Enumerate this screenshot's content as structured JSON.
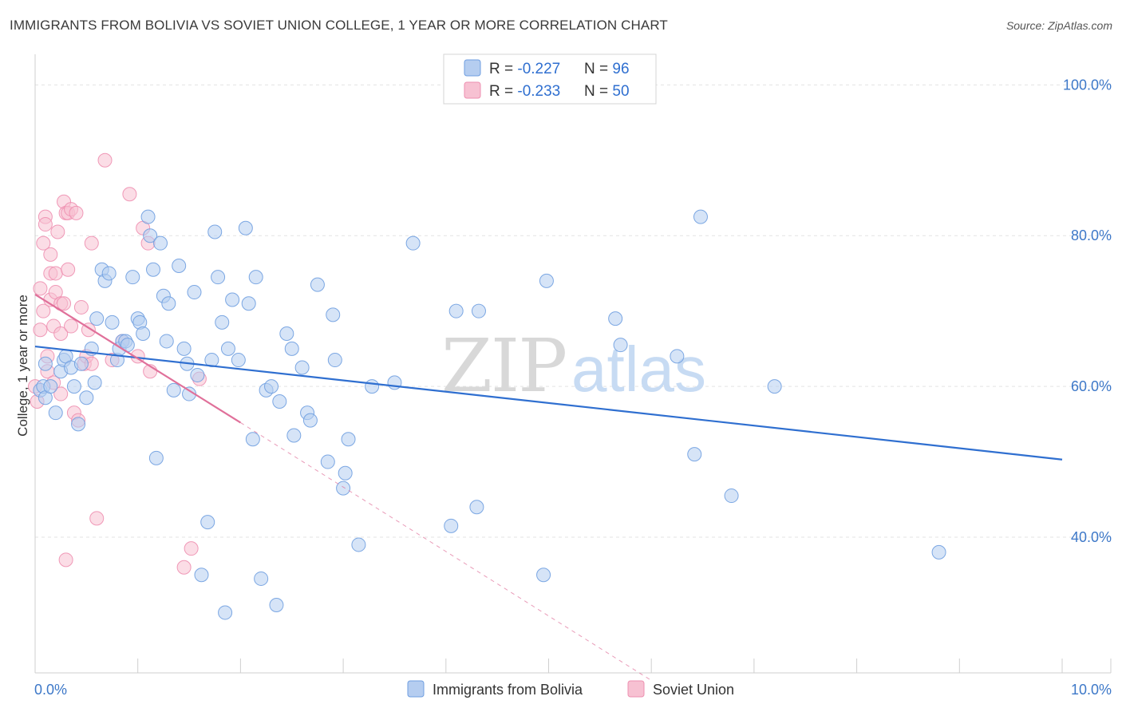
{
  "title": "IMMIGRANTS FROM BOLIVIA VS SOVIET UNION COLLEGE, 1 YEAR OR MORE CORRELATION CHART",
  "source": "Source: ZipAtlas.com",
  "watermark": {
    "part1": "ZIP",
    "part2": "atlas"
  },
  "colors": {
    "blue_fill": "#b5cdf0",
    "blue_stroke": "#6f9ee0",
    "blue_line": "#2f6fd0",
    "pink_fill": "#f7c1d2",
    "pink_stroke": "#ee8fb0",
    "pink_line": "#e0709a",
    "value_blue": "#2f6fd0",
    "tick_blue": "#3d78c8",
    "grid": "#e3e3e3"
  },
  "legend": {
    "rows": [
      {
        "r_label": "R = ",
        "r_value": "-0.227",
        "n_label": "N = ",
        "n_value": "96"
      },
      {
        "r_label": "R = ",
        "r_value": "-0.233",
        "n_label": "N = ",
        "n_value": "50"
      }
    ]
  },
  "chart_data": {
    "type": "scatter",
    "xlabel": "",
    "ylabel": "College, 1 year or more",
    "xlim": [
      0,
      10
    ],
    "ylim": [
      22,
      103
    ],
    "x_tick_labels": [
      {
        "value": 0,
        "label": "0.0%"
      },
      {
        "value": 10,
        "label": "10.0%"
      }
    ],
    "x_minor_ticks": [
      1,
      2,
      3,
      4,
      5,
      6,
      7,
      8,
      9,
      10
    ],
    "y_ticks": [
      {
        "value": 100,
        "label": "100.0%"
      },
      {
        "value": 80,
        "label": "80.0%"
      },
      {
        "value": 60,
        "label": "60.0%"
      },
      {
        "value": 40,
        "label": "40.0%"
      }
    ],
    "grid": true,
    "legend_position": "bottom",
    "series": [
      {
        "name": "Immigrants from Bolivia",
        "color": "blue",
        "r": -0.227,
        "n": 96,
        "trend": {
          "x0": 0,
          "y0": 65.3,
          "x1": 10,
          "y1": 50.3,
          "dashed_to": null
        },
        "points": [
          [
            0.05,
            59.5
          ],
          [
            0.08,
            60
          ],
          [
            0.1,
            58.5
          ],
          [
            0.1,
            63
          ],
          [
            0.15,
            60
          ],
          [
            0.2,
            56.5
          ],
          [
            0.25,
            62
          ],
          [
            0.28,
            63.5
          ],
          [
            0.3,
            64
          ],
          [
            0.35,
            62.5
          ],
          [
            0.38,
            60
          ],
          [
            0.42,
            55
          ],
          [
            0.45,
            63
          ],
          [
            0.5,
            58.5
          ],
          [
            0.55,
            65
          ],
          [
            0.58,
            60.5
          ],
          [
            0.6,
            69
          ],
          [
            0.65,
            75.5
          ],
          [
            0.68,
            74
          ],
          [
            0.72,
            75
          ],
          [
            0.75,
            68.5
          ],
          [
            0.8,
            63.5
          ],
          [
            0.82,
            65
          ],
          [
            0.85,
            66
          ],
          [
            0.88,
            66
          ],
          [
            0.9,
            65.5
          ],
          [
            0.95,
            74.5
          ],
          [
            1.0,
            69
          ],
          [
            1.02,
            68.5
          ],
          [
            1.05,
            67
          ],
          [
            1.1,
            82.5
          ],
          [
            1.12,
            80
          ],
          [
            1.15,
            75.5
          ],
          [
            1.18,
            50.5
          ],
          [
            1.22,
            79
          ],
          [
            1.25,
            72
          ],
          [
            1.28,
            66
          ],
          [
            1.3,
            71
          ],
          [
            1.35,
            59.5
          ],
          [
            1.4,
            76
          ],
          [
            1.45,
            65
          ],
          [
            1.48,
            63
          ],
          [
            1.5,
            59
          ],
          [
            1.55,
            72.5
          ],
          [
            1.58,
            61.5
          ],
          [
            1.62,
            35
          ],
          [
            1.68,
            42
          ],
          [
            1.72,
            63.5
          ],
          [
            1.75,
            80.5
          ],
          [
            1.78,
            74.5
          ],
          [
            1.82,
            68.5
          ],
          [
            1.85,
            30
          ],
          [
            1.88,
            65
          ],
          [
            1.92,
            71.5
          ],
          [
            1.98,
            63.5
          ],
          [
            2.05,
            81
          ],
          [
            2.08,
            71
          ],
          [
            2.12,
            53
          ],
          [
            2.15,
            74.5
          ],
          [
            2.2,
            34.5
          ],
          [
            2.25,
            59.5
          ],
          [
            2.3,
            60
          ],
          [
            2.35,
            31
          ],
          [
            2.38,
            58
          ],
          [
            2.45,
            67
          ],
          [
            2.5,
            65
          ],
          [
            2.52,
            53.5
          ],
          [
            2.6,
            62.5
          ],
          [
            2.65,
            56.5
          ],
          [
            2.68,
            55.5
          ],
          [
            2.75,
            73.5
          ],
          [
            2.85,
            50
          ],
          [
            2.9,
            69.5
          ],
          [
            2.92,
            63.5
          ],
          [
            3.0,
            46.5
          ],
          [
            3.02,
            48.5
          ],
          [
            3.05,
            53
          ],
          [
            3.15,
            39
          ],
          [
            3.28,
            60
          ],
          [
            3.5,
            60.5
          ],
          [
            3.68,
            79
          ],
          [
            4.05,
            41.5
          ],
          [
            4.1,
            70
          ],
          [
            4.3,
            44
          ],
          [
            4.32,
            70
          ],
          [
            4.95,
            35
          ],
          [
            4.98,
            74
          ],
          [
            5.65,
            69
          ],
          [
            5.7,
            65.5
          ],
          [
            6.25,
            64
          ],
          [
            6.42,
            51
          ],
          [
            6.48,
            82.5
          ],
          [
            6.78,
            45.5
          ],
          [
            7.2,
            60
          ],
          [
            8.8,
            38
          ]
        ]
      },
      {
        "name": "Soviet Union",
        "color": "pink",
        "r": -0.233,
        "n": 50,
        "trend": {
          "x0": 0,
          "y0": 72.2,
          "x1": 2.0,
          "y1": 55.2,
          "dashed_to": {
            "x": 6.0,
            "y": 21
          }
        },
        "points": [
          [
            0.0,
            60
          ],
          [
            0.02,
            58
          ],
          [
            0.05,
            67.5
          ],
          [
            0.05,
            73
          ],
          [
            0.08,
            70
          ],
          [
            0.08,
            79
          ],
          [
            0.1,
            82.5
          ],
          [
            0.1,
            81.5
          ],
          [
            0.12,
            62
          ],
          [
            0.12,
            64
          ],
          [
            0.15,
            75
          ],
          [
            0.15,
            71.5
          ],
          [
            0.15,
            77.5
          ],
          [
            0.18,
            68
          ],
          [
            0.18,
            60.5
          ],
          [
            0.2,
            72.5
          ],
          [
            0.2,
            75
          ],
          [
            0.22,
            80.5
          ],
          [
            0.25,
            71
          ],
          [
            0.25,
            59
          ],
          [
            0.25,
            67
          ],
          [
            0.28,
            71
          ],
          [
            0.28,
            84.5
          ],
          [
            0.3,
            83
          ],
          [
            0.3,
            37
          ],
          [
            0.32,
            75.5
          ],
          [
            0.32,
            83
          ],
          [
            0.35,
            83.5
          ],
          [
            0.35,
            68
          ],
          [
            0.38,
            56.5
          ],
          [
            0.4,
            83
          ],
          [
            0.42,
            55.5
          ],
          [
            0.45,
            70.5
          ],
          [
            0.48,
            63
          ],
          [
            0.5,
            64
          ],
          [
            0.52,
            67.5
          ],
          [
            0.55,
            79
          ],
          [
            0.55,
            63
          ],
          [
            0.6,
            42.5
          ],
          [
            0.68,
            90
          ],
          [
            0.75,
            63.5
          ],
          [
            0.85,
            66
          ],
          [
            0.92,
            85.5
          ],
          [
            1.0,
            64
          ],
          [
            1.05,
            81
          ],
          [
            1.1,
            79
          ],
          [
            1.12,
            62
          ],
          [
            1.45,
            36
          ],
          [
            1.52,
            38.5
          ],
          [
            1.6,
            61
          ]
        ]
      }
    ]
  }
}
